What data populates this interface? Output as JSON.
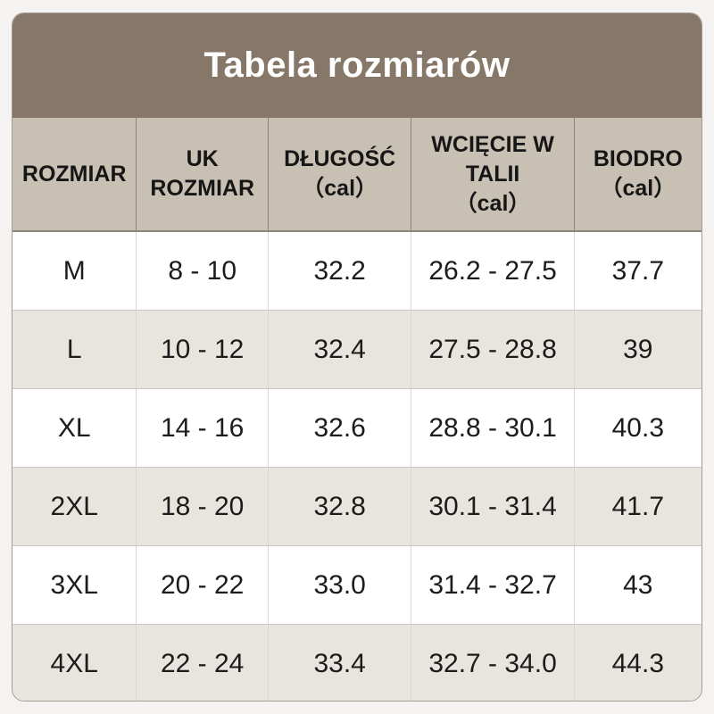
{
  "colors": {
    "page_background": "#f4f3f1",
    "title_bar_background": "#877768",
    "title_text": "#ffffff",
    "header_row_background": "#c9c0b4",
    "alt_row_background": "#e8e4de",
    "row_background": "#ffffff",
    "body_text": "#1c1c1c",
    "dark_border": "#8d8579",
    "light_border": "#d9d6d0"
  },
  "chart_data": {
    "type": "table",
    "title": "Tabela rozmiarów",
    "columns": [
      {
        "key": "size",
        "label": "ROZMIAR",
        "width": "18.0%"
      },
      {
        "key": "uk",
        "label": "UK\nROZMIAR",
        "width": "19.1%"
      },
      {
        "key": "length",
        "label": "DŁUGOŚĆ\n（cal）",
        "width": "20.8%"
      },
      {
        "key": "waist",
        "label": "WCIĘCIE W\nTALII\n（cal）",
        "width": "23.6%"
      },
      {
        "key": "hips",
        "label": "BIODRO\n（cal）",
        "width": "18.5%"
      }
    ],
    "rows": [
      {
        "size": "M",
        "uk": "8 - 10",
        "length": "32.2",
        "waist": "26.2 - 27.5",
        "hips": "37.7"
      },
      {
        "size": "L",
        "uk": "10 - 12",
        "length": "32.4",
        "waist": "27.5 - 28.8",
        "hips": "39"
      },
      {
        "size": "XL",
        "uk": "14 - 16",
        "length": "32.6",
        "waist": "28.8 - 30.1",
        "hips": "40.3"
      },
      {
        "size": "2XL",
        "uk": "18 - 20",
        "length": "32.8",
        "waist": "30.1 - 31.4",
        "hips": "41.7"
      },
      {
        "size": "3XL",
        "uk": "20 - 22",
        "length": "33.0",
        "waist": "31.4 - 32.7",
        "hips": "43"
      },
      {
        "size": "4XL",
        "uk": "22 - 24",
        "length": "33.4",
        "waist": "32.7 - 34.0",
        "hips": "44.3"
      }
    ]
  }
}
